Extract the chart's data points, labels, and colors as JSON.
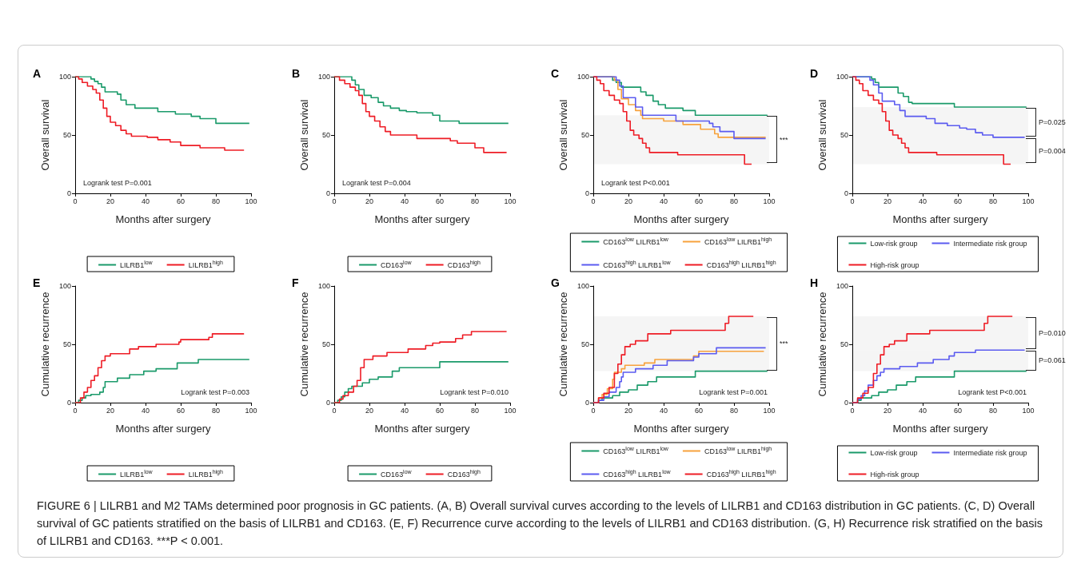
{
  "chart_data": [
    {
      "type": "step",
      "title": "A",
      "xlabel": "Months after surgery",
      "ylabel": "Overall survival",
      "xlim": [
        0,
        100
      ],
      "xticks": [
        0,
        20,
        40,
        60,
        80,
        100
      ],
      "ylim": [
        0,
        100
      ],
      "yticks": [
        0,
        50,
        100
      ],
      "grid": false,
      "legend": "bottom",
      "marker": "none",
      "line_style": "solid",
      "annotations": [
        "Logrank test P=0.001"
      ],
      "series": [
        {
          "name": "LILRB1$^{low}$",
          "color": "#1a9a6a",
          "x": [
            0,
            7,
            9,
            11,
            13,
            15,
            17,
            24,
            26,
            29,
            34,
            47,
            57,
            66,
            71,
            80,
            99
          ],
          "values": [
            100,
            100,
            98,
            96,
            94,
            91,
            87,
            85,
            80,
            76,
            73,
            70,
            68,
            66,
            64,
            60,
            60
          ]
        },
        {
          "name": "LILRB1$^{high}$",
          "color": "#ee1c25",
          "x": [
            0,
            2,
            4,
            7,
            10,
            12,
            14,
            16,
            18,
            20,
            23,
            26,
            29,
            32,
            41,
            47,
            54,
            60,
            71,
            85,
            96
          ],
          "values": [
            100,
            98,
            95,
            92,
            89,
            86,
            80,
            73,
            66,
            61,
            58,
            54,
            51,
            49,
            48,
            46,
            44,
            41,
            39,
            37,
            37
          ]
        }
      ]
    },
    {
      "type": "step",
      "title": "B",
      "xlabel": "Months after surgery",
      "ylabel": "Overall survival",
      "xlim": [
        0,
        100
      ],
      "xticks": [
        0,
        20,
        40,
        60,
        80,
        100
      ],
      "ylim": [
        0,
        100
      ],
      "yticks": [
        0,
        50,
        100
      ],
      "grid": false,
      "legend": "bottom",
      "marker": "none",
      "line_style": "solid",
      "annotations": [
        "Logrank test P=0.004"
      ],
      "series": [
        {
          "name": "CD163$^{low}$",
          "color": "#1a9a6a",
          "x": [
            0,
            7,
            10,
            12,
            14,
            17,
            21,
            25,
            28,
            32,
            37,
            41,
            47,
            56,
            60,
            71,
            99
          ],
          "values": [
            100,
            100,
            97,
            93,
            89,
            84,
            82,
            78,
            75,
            73,
            71,
            70,
            69,
            67,
            62,
            60,
            60
          ]
        },
        {
          "name": "CD163$^{high}$",
          "color": "#ee1c25",
          "x": [
            0,
            3,
            6,
            9,
            12,
            14,
            16,
            18,
            20,
            23,
            26,
            29,
            32,
            46,
            47,
            66,
            70,
            80,
            85,
            98
          ],
          "values": [
            100,
            97,
            94,
            91,
            88,
            84,
            77,
            70,
            66,
            62,
            57,
            53,
            50,
            50,
            47,
            45,
            43,
            39,
            35,
            35
          ]
        }
      ]
    },
    {
      "type": "step",
      "title": "C",
      "xlabel": "Months after surgery",
      "ylabel": "Overall survival",
      "xlim": [
        0,
        100
      ],
      "xticks": [
        0,
        20,
        40,
        60,
        80,
        100
      ],
      "ylim": [
        0,
        100
      ],
      "yticks": [
        0,
        50,
        100
      ],
      "grid": false,
      "legend": "bottom",
      "marker": "none",
      "line_style": "solid",
      "annotations": [
        "Logrank test P<0.001"
      ],
      "bands": [
        {
          "axis": "y",
          "from": 25,
          "to": 67,
          "label": "***"
        }
      ],
      "series": [
        {
          "name": "CD163$^{low}$ LILRB1$^{low}$",
          "color": "#1a9a6a",
          "x": [
            0,
            9,
            11,
            13,
            16,
            25,
            27,
            30,
            34,
            37,
            41,
            51,
            58,
            99
          ],
          "values": [
            100,
            100,
            97,
            95,
            91,
            91,
            87,
            84,
            79,
            76,
            73,
            71,
            67,
            67
          ]
        },
        {
          "name": "CD163$^{low}$ LILRB1$^{high}$",
          "color": "#f7a23c",
          "x": [
            0,
            9,
            12,
            14,
            16,
            20,
            24,
            27,
            28,
            40,
            51,
            61,
            69,
            71,
            98
          ],
          "values": [
            100,
            100,
            97,
            89,
            81,
            76,
            71,
            67,
            64,
            62,
            59,
            55,
            51,
            48,
            48
          ]
        },
        {
          "name": "CD163$^{high}$ LILRB1$^{low}$",
          "color": "#5b5bf0",
          "x": [
            0,
            10,
            13,
            15,
            17,
            22,
            24,
            28,
            40,
            47,
            66,
            68,
            72,
            80,
            98
          ],
          "values": [
            100,
            100,
            97,
            92,
            82,
            82,
            74,
            67,
            67,
            62,
            60,
            57,
            53,
            47,
            47
          ]
        },
        {
          "name": "CD163$^{high}$ LILRB1$^{high}$",
          "color": "#ee1c25",
          "x": [
            0,
            2,
            4,
            6,
            9,
            12,
            15,
            17,
            19,
            21,
            23,
            26,
            28,
            30,
            32,
            47,
            48,
            85,
            86,
            90
          ],
          "values": [
            100,
            97,
            94,
            88,
            84,
            80,
            77,
            70,
            62,
            54,
            50,
            47,
            43,
            39,
            35,
            35,
            33,
            33,
            25,
            25
          ]
        }
      ]
    },
    {
      "type": "step",
      "title": "D",
      "xlabel": "Months after surgery",
      "ylabel": "Overall survival",
      "xlim": [
        0,
        100
      ],
      "xticks": [
        0,
        20,
        40,
        60,
        80,
        100
      ],
      "ylim": [
        0,
        100
      ],
      "yticks": [
        0,
        50,
        100
      ],
      "grid": false,
      "legend": "bottom",
      "marker": "none",
      "line_style": "solid",
      "bands": [
        {
          "axis": "y",
          "from": 48,
          "to": 74,
          "label": "P=0.025"
        },
        {
          "axis": "y",
          "from": 25,
          "to": 48,
          "label": "P=0.004"
        }
      ],
      "series": [
        {
          "name": "Low-risk group",
          "color": "#1a9a6a",
          "x": [
            0,
            9,
            11,
            13,
            15,
            24,
            26,
            29,
            32,
            34,
            57,
            58,
            99
          ],
          "values": [
            100,
            100,
            98,
            95,
            91,
            91,
            86,
            83,
            78,
            77,
            77,
            74,
            74
          ]
        },
        {
          "name": "Intermediate risk group",
          "color": "#5b5bf0",
          "x": [
            0,
            8,
            10,
            12,
            15,
            17,
            24,
            27,
            30,
            42,
            47,
            54,
            61,
            65,
            70,
            74,
            80,
            98
          ],
          "values": [
            100,
            100,
            97,
            93,
            86,
            79,
            76,
            71,
            66,
            64,
            60,
            58,
            56,
            55,
            52,
            50,
            48,
            48
          ]
        },
        {
          "name": "High-risk group",
          "color": "#ee1c25",
          "x": [
            0,
            2,
            4,
            6,
            9,
            12,
            15,
            17,
            19,
            21,
            23,
            26,
            28,
            30,
            32,
            47,
            48,
            85,
            86,
            90
          ],
          "values": [
            100,
            97,
            94,
            88,
            84,
            80,
            77,
            70,
            62,
            54,
            50,
            47,
            43,
            39,
            35,
            35,
            33,
            33,
            25,
            25
          ]
        }
      ]
    },
    {
      "type": "step",
      "title": "E",
      "xlabel": "Months after surgery",
      "ylabel": "Cumulative recurrence",
      "xlim": [
        0,
        100
      ],
      "xticks": [
        0,
        20,
        40,
        60,
        80,
        100
      ],
      "ylim": [
        0,
        100
      ],
      "yticks": [
        0,
        50,
        100
      ],
      "grid": false,
      "legend": "bottom",
      "marker": "none",
      "line_style": "solid",
      "annotations": [
        "Logrank test P=0.003"
      ],
      "series": [
        {
          "name": "LILRB1$^{low}$",
          "color": "#1a9a6a",
          "x": [
            0,
            2,
            4,
            6,
            9,
            14,
            16,
            17,
            24,
            31,
            39,
            46,
            58,
            70,
            99
          ],
          "values": [
            0,
            2,
            4,
            6,
            7,
            9,
            13,
            18,
            21,
            24,
            27,
            29,
            34,
            37,
            37
          ]
        },
        {
          "name": "LILRB1$^{high}$",
          "color": "#ee1c25",
          "x": [
            0,
            3,
            5,
            7,
            9,
            11,
            13,
            15,
            17,
            20,
            31,
            36,
            46,
            59,
            60,
            76,
            78,
            96
          ],
          "values": [
            0,
            4,
            9,
            13,
            19,
            23,
            30,
            36,
            40,
            42,
            46,
            48,
            50,
            52,
            54,
            56,
            59,
            59
          ]
        }
      ]
    },
    {
      "type": "step",
      "title": "F",
      "xlabel": "Months after surgery",
      "ylabel": "Cumulative recurrence",
      "xlim": [
        0,
        100
      ],
      "xticks": [
        0,
        20,
        40,
        60,
        80,
        100
      ],
      "ylim": [
        0,
        100
      ],
      "yticks": [
        0,
        50,
        100
      ],
      "grid": false,
      "legend": "bottom",
      "marker": "none",
      "line_style": "solid",
      "annotations": [
        "Logrank test P=0.010"
      ],
      "series": [
        {
          "name": "CD163$^{low}$",
          "color": "#1a9a6a",
          "x": [
            0,
            2,
            4,
            6,
            8,
            10,
            16,
            20,
            25,
            33,
            37,
            57,
            60,
            99
          ],
          "values": [
            0,
            2,
            5,
            9,
            12,
            14,
            17,
            20,
            22,
            27,
            30,
            30,
            35,
            35
          ]
        },
        {
          "name": "CD163$^{high}$",
          "color": "#ee1c25",
          "x": [
            0,
            3,
            5,
            8,
            11,
            13,
            15,
            17,
            22,
            30,
            42,
            52,
            56,
            60,
            69,
            73,
            78,
            98
          ],
          "values": [
            0,
            3,
            6,
            9,
            14,
            19,
            30,
            37,
            40,
            43,
            46,
            49,
            51,
            52,
            55,
            58,
            61,
            61
          ]
        }
      ]
    },
    {
      "type": "step",
      "title": "G",
      "xlabel": "Months after surgery",
      "ylabel": "Cumulative recurrence",
      "xlim": [
        0,
        100
      ],
      "xticks": [
        0,
        20,
        40,
        60,
        80,
        100
      ],
      "ylim": [
        0,
        100
      ],
      "yticks": [
        0,
        50,
        100
      ],
      "grid": false,
      "legend": "bottom",
      "marker": "none",
      "line_style": "solid",
      "annotations": [
        "Logrank test P=0.001"
      ],
      "bands": [
        {
          "axis": "y",
          "from": 27,
          "to": 74,
          "label": "***"
        }
      ],
      "series": [
        {
          "name": "CD163$^{low}$ LILRB1$^{low}$",
          "color": "#1a9a6a",
          "x": [
            0,
            3,
            5,
            11,
            15,
            20,
            25,
            31,
            36,
            58,
            99
          ],
          "values": [
            0,
            2,
            4,
            6,
            9,
            11,
            15,
            18,
            22,
            27,
            27
          ]
        },
        {
          "name": "CD163$^{low}$ LILRB1$^{high}$",
          "color": "#f7a23c",
          "x": [
            0,
            3,
            5,
            8,
            11,
            12,
            16,
            18,
            29,
            35,
            57,
            60,
            97
          ],
          "values": [
            0,
            4,
            7,
            12,
            20,
            26,
            29,
            32,
            34,
            37,
            40,
            44,
            44
          ]
        },
        {
          "name": "CD163$^{high}$ LILRB1$^{low}$",
          "color": "#5b5bf0",
          "x": [
            0,
            3,
            6,
            9,
            13,
            15,
            16,
            17,
            24,
            34,
            42,
            57,
            60,
            70,
            98
          ],
          "values": [
            0,
            2,
            5,
            9,
            13,
            18,
            22,
            26,
            29,
            32,
            36,
            39,
            42,
            47,
            47
          ]
        },
        {
          "name": "CD163$^{high}$ LILRB1$^{high}$",
          "color": "#ee1c25",
          "x": [
            0,
            3,
            6,
            9,
            12,
            14,
            16,
            18,
            21,
            24,
            31,
            44,
            75,
            77,
            91
          ],
          "values": [
            0,
            4,
            8,
            13,
            25,
            33,
            41,
            48,
            50,
            53,
            59,
            62,
            68,
            74,
            74
          ]
        }
      ]
    },
    {
      "type": "step",
      "title": "H",
      "xlabel": "Months after surgery",
      "ylabel": "Cumulative recurrence",
      "xlim": [
        0,
        100
      ],
      "xticks": [
        0,
        20,
        40,
        60,
        80,
        100
      ],
      "ylim": [
        0,
        100
      ],
      "yticks": [
        0,
        50,
        100
      ],
      "grid": false,
      "legend": "bottom",
      "marker": "none",
      "line_style": "solid",
      "annotations": [
        "Logrank test P<0.001",
        "FIGURE 6 | LILRB1 and M2 TAMs determined poor prognosis in GC patients. (A, B) Overall survival curves according to the levels of LILRB1 and CD163 distribution in GC patients. (C, D) Overall survival of GC patients stratified on the basis of LILRB1 and CD163. (E, F) Recurrence curve according to the levels of LILRB1 and CD163 distribution. (G, H) Recurrence risk stratified on the basis of LILRB1 and CD163. ***P < 0.001."
      ],
      "bands": [
        {
          "axis": "y",
          "from": 45,
          "to": 74,
          "label": "P=0.010"
        },
        {
          "axis": "y",
          "from": 27,
          "to": 45,
          "label": "P=0.061"
        }
      ],
      "series": [
        {
          "name": "Low-risk group",
          "color": "#1a9a6a",
          "x": [
            0,
            3,
            5,
            11,
            15,
            20,
            25,
            31,
            36,
            58,
            99
          ],
          "values": [
            0,
            2,
            4,
            6,
            9,
            11,
            15,
            18,
            22,
            27,
            27
          ]
        },
        {
          "name": "Intermediate risk group",
          "color": "#5b5bf0",
          "x": [
            0,
            3,
            5,
            7,
            9,
            12,
            14,
            16,
            18,
            27,
            37,
            46,
            55,
            58,
            70,
            98
          ],
          "values": [
            0,
            3,
            6,
            10,
            15,
            19,
            23,
            26,
            29,
            31,
            34,
            37,
            40,
            43,
            45,
            45
          ]
        },
        {
          "name": "High-risk group",
          "color": "#ee1c25",
          "x": [
            0,
            3,
            6,
            9,
            12,
            14,
            16,
            18,
            21,
            24,
            31,
            44,
            75,
            77,
            91
          ],
          "values": [
            0,
            4,
            8,
            13,
            25,
            33,
            41,
            48,
            50,
            53,
            59,
            62,
            68,
            74,
            74
          ]
        }
      ]
    }
  ]
}
